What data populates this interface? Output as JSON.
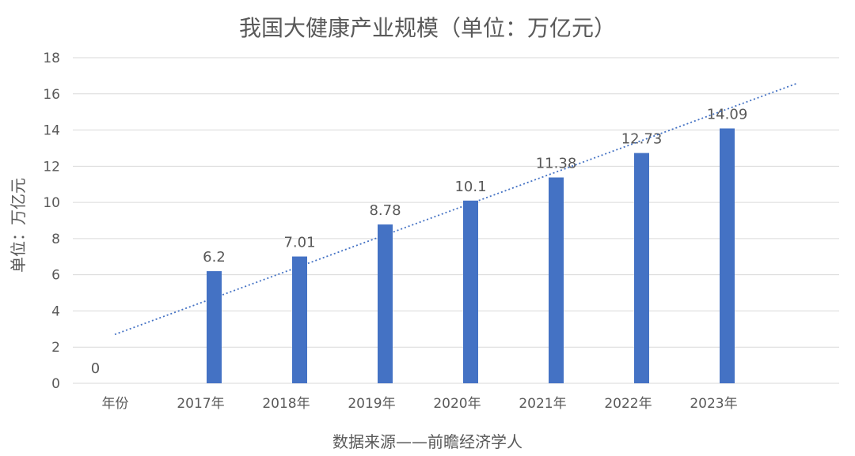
{
  "chart_data": {
    "type": "bar",
    "title": "我国大健康产业规模（单位：万亿元）",
    "ylabel": "单位：万亿元",
    "xlabel": "数据来源——前瞻经济学人",
    "categories": [
      "年份",
      "2017年",
      "2018年",
      "2019年",
      "2020年",
      "2021年",
      "2022年",
      "2023年"
    ],
    "values": [
      0,
      6.2,
      7.01,
      8.78,
      10.1,
      11.38,
      12.73,
      14.09
    ],
    "value_labels": [
      "0",
      "6.2",
      "7.01",
      "8.78",
      "10.1",
      "11.38",
      "12.73",
      "14.09"
    ],
    "ylim": [
      0,
      18
    ],
    "yticks": [
      0,
      2,
      4,
      6,
      8,
      10,
      12,
      14,
      16,
      18
    ],
    "trendline": {
      "type": "linear",
      "style": "dotted",
      "start_value": 2.7,
      "end_value": 16.6
    },
    "grid": true,
    "legend": "none",
    "colors": {
      "bar": "#4472c4",
      "trend": "#4472c4",
      "grid": "#d9d9d9",
      "text": "#595959"
    }
  }
}
